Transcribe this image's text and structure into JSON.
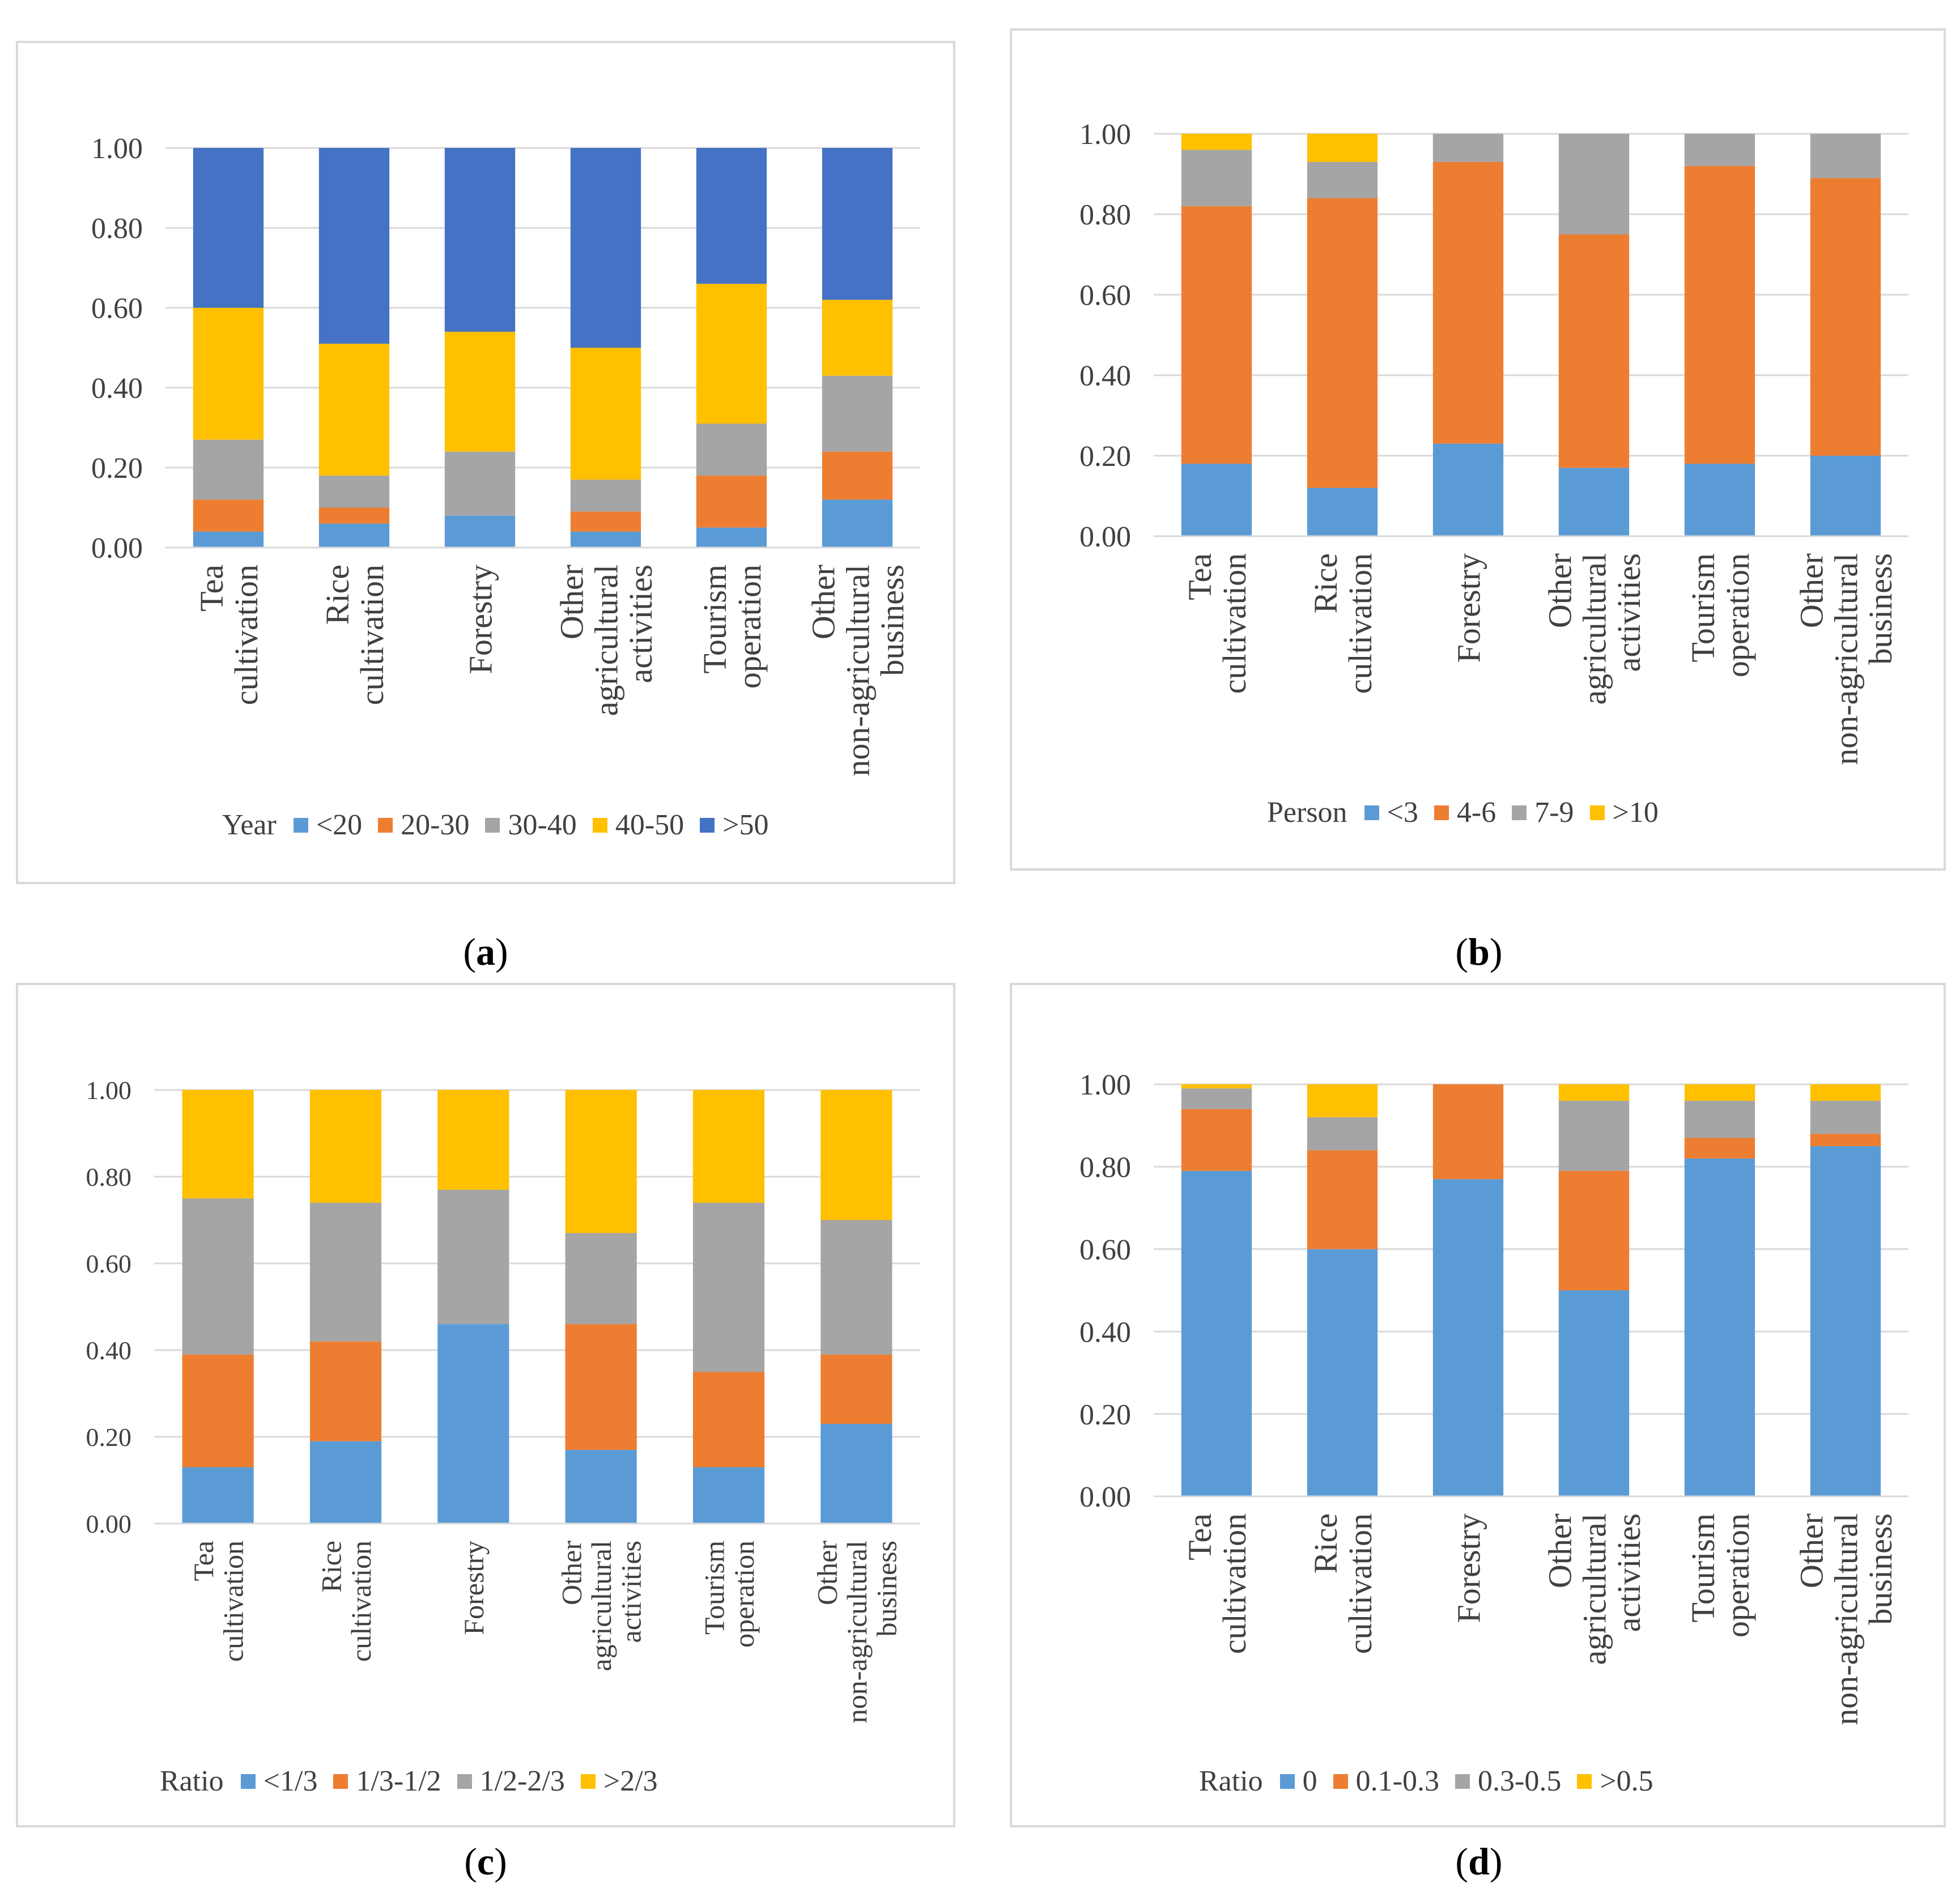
{
  "captions": {
    "a": {
      "label": "a"
    },
    "b": {
      "label": "b"
    },
    "c": {
      "label": "c"
    },
    "d": {
      "label": "d"
    }
  },
  "chart_data": [
    {
      "id": "a",
      "type": "bar",
      "stacked": true,
      "categories": [
        [
          "Tea",
          "cultivation"
        ],
        [
          "Rice",
          "cultivation"
        ],
        [
          "Forestry"
        ],
        [
          "Other",
          "agricultural",
          "activities"
        ],
        [
          "Tourism",
          "operation"
        ],
        [
          "Other",
          "non-agricultural",
          "business"
        ]
      ],
      "ylim": [
        0,
        1
      ],
      "yticks": [
        "0.00",
        "0.20",
        "0.40",
        "0.60",
        "0.80",
        "1.00"
      ],
      "legend_title": "Year",
      "series": [
        {
          "name": "<20",
          "color": "#5b9bd5",
          "values": [
            0.04,
            0.06,
            0.08,
            0.04,
            0.05,
            0.12
          ]
        },
        {
          "name": "20-30",
          "color": "#ed7d31",
          "values": [
            0.08,
            0.04,
            0.0,
            0.05,
            0.13,
            0.12
          ]
        },
        {
          "name": "30-40",
          "color": "#a5a5a5",
          "values": [
            0.15,
            0.08,
            0.16,
            0.08,
            0.13,
            0.19
          ]
        },
        {
          "name": "40-50",
          "color": "#ffc000",
          "values": [
            0.33,
            0.33,
            0.3,
            0.33,
            0.35,
            0.19
          ]
        },
        {
          "name": ">50",
          "color": "#4472c4",
          "values": [
            0.4,
            0.49,
            0.46,
            0.5,
            0.34,
            0.38
          ]
        }
      ]
    },
    {
      "id": "b",
      "type": "bar",
      "stacked": true,
      "categories": [
        [
          "Tea",
          "cultivation"
        ],
        [
          "Rice",
          "cultivation"
        ],
        [
          "Forestry"
        ],
        [
          "Other",
          "agricultural",
          "activities"
        ],
        [
          "Tourism",
          "operation"
        ],
        [
          "Other",
          "non-agricultural",
          "business"
        ]
      ],
      "ylim": [
        0,
        1
      ],
      "yticks": [
        "0.00",
        "0.20",
        "0.40",
        "0.60",
        "0.80",
        "1.00"
      ],
      "legend_title": "Person",
      "series": [
        {
          "name": "<3",
          "color": "#5b9bd5",
          "values": [
            0.18,
            0.12,
            0.23,
            0.17,
            0.18,
            0.2
          ]
        },
        {
          "name": "4-6",
          "color": "#ed7d31",
          "values": [
            0.64,
            0.72,
            0.7,
            0.58,
            0.74,
            0.69
          ]
        },
        {
          "name": "7-9",
          "color": "#a5a5a5",
          "values": [
            0.14,
            0.09,
            0.07,
            0.25,
            0.08,
            0.11
          ]
        },
        {
          "name": ">10",
          "color": "#ffc000",
          "values": [
            0.04,
            0.07,
            0.0,
            0.0,
            0.0,
            0.0
          ]
        }
      ]
    },
    {
      "id": "c",
      "type": "bar",
      "stacked": true,
      "categories": [
        [
          "Tea",
          "cultivation"
        ],
        [
          "Rice",
          "cultivation"
        ],
        [
          "Forestry"
        ],
        [
          "Other",
          "agricultural",
          "activities"
        ],
        [
          "Tourism",
          "operation"
        ],
        [
          "Other",
          "non-agricultural",
          "business"
        ]
      ],
      "ylim": [
        0,
        1
      ],
      "yticks": [
        "0.00",
        "0.20",
        "0.40",
        "0.60",
        "0.80",
        "1.00"
      ],
      "legend_title": "Ratio",
      "series": [
        {
          "name": "<1/3",
          "color": "#5b9bd5",
          "values": [
            0.13,
            0.19,
            0.46,
            0.17,
            0.13,
            0.23
          ]
        },
        {
          "name": "1/3-1/2",
          "color": "#ed7d31",
          "values": [
            0.26,
            0.23,
            0.0,
            0.29,
            0.22,
            0.16
          ]
        },
        {
          "name": "1/2-2/3",
          "color": "#a5a5a5",
          "values": [
            0.36,
            0.32,
            0.31,
            0.21,
            0.39,
            0.31
          ]
        },
        {
          "name": ">2/3",
          "color": "#ffc000",
          "values": [
            0.25,
            0.26,
            0.23,
            0.33,
            0.26,
            0.3
          ]
        }
      ]
    },
    {
      "id": "d",
      "type": "bar",
      "stacked": true,
      "categories": [
        [
          "Tea",
          "cultivation"
        ],
        [
          "Rice",
          "cultivation"
        ],
        [
          "Forestry"
        ],
        [
          "Other",
          "agricultural",
          "activities"
        ],
        [
          "Tourism",
          "operation"
        ],
        [
          "Other",
          "non-agricultural",
          "business"
        ]
      ],
      "ylim": [
        0,
        1
      ],
      "yticks": [
        "0.00",
        "0.20",
        "0.40",
        "0.60",
        "0.80",
        "1.00"
      ],
      "legend_title": "Ratio",
      "series": [
        {
          "name": "0",
          "color": "#5b9bd5",
          "values": [
            0.79,
            0.6,
            0.77,
            0.5,
            0.82,
            0.85
          ]
        },
        {
          "name": "0.1-0.3",
          "color": "#ed7d31",
          "values": [
            0.15,
            0.24,
            0.23,
            0.29,
            0.05,
            0.03
          ]
        },
        {
          "name": "0.3-0.5",
          "color": "#a5a5a5",
          "values": [
            0.05,
            0.08,
            0.0,
            0.17,
            0.09,
            0.08
          ]
        },
        {
          "name": ">0.5",
          "color": "#ffc000",
          "values": [
            0.01,
            0.08,
            0.0,
            0.04,
            0.04,
            0.04
          ]
        }
      ]
    }
  ]
}
